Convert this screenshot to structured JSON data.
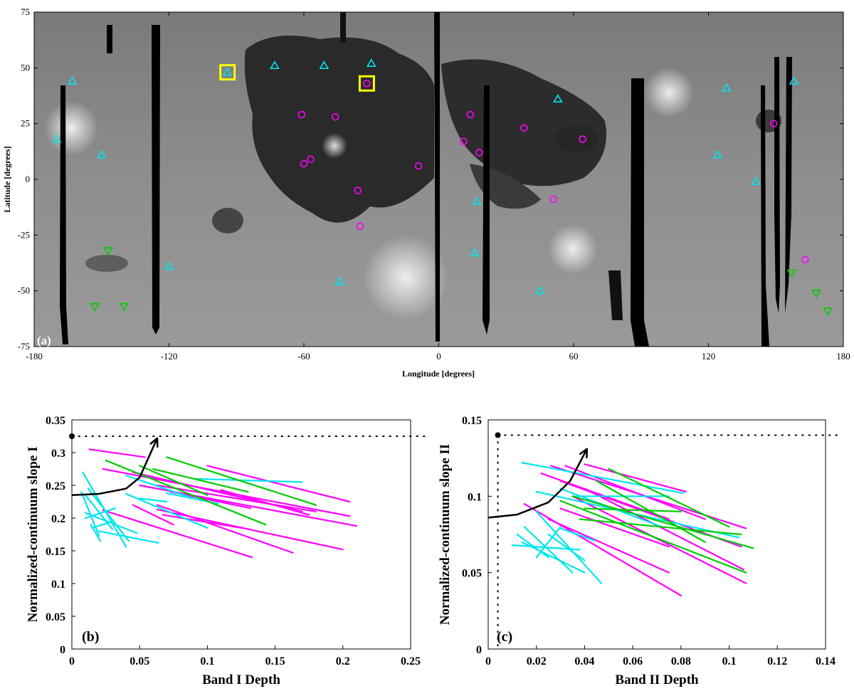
{
  "colors": {
    "mare": "#ff00ff",
    "highland_up": "#00e5ee",
    "highland_down": "#00cc00",
    "highlight": "#ffff00"
  },
  "chart_data": [
    {
      "type": "scatter",
      "panel_label": "(a)",
      "xlabel": "Longitude [degrees]",
      "ylabel": "Latitude [degrees]",
      "xlim": [
        -180,
        180
      ],
      "ylim": [
        -75,
        75
      ],
      "xticks": [
        -180,
        -120,
        -60,
        0,
        60,
        120,
        180
      ],
      "yticks": [
        -75,
        -50,
        -25,
        0,
        25,
        50,
        75
      ],
      "series": [
        {
          "name": "circle",
          "color": "#ff00ff",
          "points": [
            [
              -61,
              29
            ],
            [
              -46,
              28
            ],
            [
              -32,
              43
            ],
            [
              -60,
              7
            ],
            [
              -57,
              9
            ],
            [
              -36,
              -5
            ],
            [
              -35,
              -21
            ],
            [
              -9,
              6
            ],
            [
              14,
              29
            ],
            [
              11,
              17
            ],
            [
              18,
              12
            ],
            [
              38,
              23
            ],
            [
              64,
              18
            ],
            [
              51,
              -9
            ],
            [
              149,
              25
            ],
            [
              163,
              -36
            ]
          ]
        },
        {
          "name": "triangle-up",
          "color": "#00e5ee",
          "points": [
            [
              -163,
              44
            ],
            [
              -170,
              18
            ],
            [
              -150,
              11
            ],
            [
              -94,
              48
            ],
            [
              -73,
              51
            ],
            [
              -51,
              51
            ],
            [
              -30,
              52
            ],
            [
              -44,
              -46
            ],
            [
              53,
              36
            ],
            [
              128,
              41
            ],
            [
              124,
              11
            ],
            [
              141,
              -1
            ],
            [
              158,
              44
            ],
            [
              17,
              -10
            ],
            [
              16,
              -33
            ],
            [
              45,
              -50
            ],
            [
              -120,
              -39
            ]
          ]
        },
        {
          "name": "triangle-down",
          "color": "#00cc00",
          "points": [
            [
              -147,
              -32
            ],
            [
              -153,
              -57
            ],
            [
              -140,
              -57
            ],
            [
              157,
              -42
            ],
            [
              168,
              -51
            ],
            [
              173,
              -59
            ]
          ]
        }
      ],
      "highlight_boxes": [
        [
          -94,
          48
        ],
        [
          -32,
          43
        ]
      ]
    },
    {
      "type": "line",
      "panel_label": "(b)",
      "xlabel": "Band I Depth",
      "ylabel": "Normalized-continuum slope I",
      "xlim": [
        0,
        0.25
      ],
      "ylim": [
        0,
        0.35
      ],
      "xticks": [
        "0",
        "0.05",
        "0.1",
        "0.15",
        "0.2",
        "0.25"
      ],
      "yticks": [
        "0",
        "0.05",
        "0.1",
        "0.15",
        "0.2",
        "0.25",
        "0.3",
        "0.35"
      ],
      "reference_point": [
        0,
        0.325
      ],
      "arrow_path": [
        [
          0,
          0.235
        ],
        [
          0.02,
          0.237
        ],
        [
          0.04,
          0.245
        ],
        [
          0.05,
          0.262
        ],
        [
          0.063,
          0.322
        ]
      ],
      "series": [
        {
          "name": "magenta",
          "color": "#ff00ff",
          "segments": [
            [
              0.013,
              0.305,
              0.054,
              0.293
            ],
            [
              0.023,
              0.275,
              0.205,
              0.203
            ],
            [
              0.045,
              0.27,
              0.17,
              0.21
            ],
            [
              0.05,
              0.25,
              0.21,
              0.188
            ],
            [
              0.063,
              0.25,
              0.18,
              0.21
            ],
            [
              0.1,
              0.28,
              0.205,
              0.225
            ],
            [
              0.11,
              0.243,
              0.175,
              0.205
            ],
            [
              0.073,
              0.24,
              0.132,
              0.215
            ],
            [
              0.063,
              0.213,
              0.2,
              0.152
            ],
            [
              0.063,
              0.22,
              0.163,
              0.147
            ],
            [
              0.023,
              0.212,
              0.133,
              0.14
            ],
            [
              0.045,
              0.22,
              0.075,
              0.19
            ],
            [
              0.067,
              0.205,
              0.125,
              0.185
            ]
          ]
        },
        {
          "name": "cyan",
          "color": "#00e5ee",
          "segments": [
            [
              0.008,
              0.27,
              0.04,
              0.156
            ],
            [
              0.01,
              0.235,
              0.03,
              0.183
            ],
            [
              0.012,
              0.245,
              0.042,
              0.165
            ],
            [
              0.007,
              0.24,
              0.02,
              0.173
            ],
            [
              0.01,
              0.208,
              0.048,
              0.177
            ],
            [
              0.015,
              0.185,
              0.03,
              0.195
            ],
            [
              0.01,
              0.2,
              0.032,
              0.215
            ],
            [
              0.02,
              0.18,
              0.064,
              0.162
            ],
            [
              0.014,
              0.19,
              0.021,
              0.165
            ],
            [
              0.04,
              0.265,
              0.09,
              0.23
            ],
            [
              0.07,
              0.238,
              0.108,
              0.222
            ],
            [
              0.09,
              0.26,
              0.17,
              0.255
            ],
            [
              0.04,
              0.237,
              0.1,
              0.185
            ],
            [
              0.05,
              0.23,
              0.07,
              0.225
            ]
          ]
        },
        {
          "name": "green",
          "color": "#00cc00",
          "segments": [
            [
              0.025,
              0.288,
              0.143,
              0.19
            ],
            [
              0.07,
              0.293,
              0.18,
              0.22
            ],
            [
              0.06,
              0.275,
              0.13,
              0.24
            ],
            [
              0.05,
              0.28,
              0.1,
              0.235
            ]
          ]
        }
      ]
    },
    {
      "type": "line",
      "panel_label": "(c)",
      "xlabel": "Band II Depth",
      "ylabel": "Normalized-continuum slope II",
      "xlim": [
        0,
        0.14
      ],
      "ylim": [
        0,
        0.15
      ],
      "xticks": [
        "0",
        "0.02",
        "0.04",
        "0.06",
        "0.08",
        "0.1",
        "0.12",
        "0.14"
      ],
      "yticks": [
        "0",
        "0.05",
        "0.1",
        "0.15"
      ],
      "reference_point": [
        0.004,
        0.14
      ],
      "arrow_path": [
        [
          0,
          0.086
        ],
        [
          0.012,
          0.088
        ],
        [
          0.025,
          0.096
        ],
        [
          0.034,
          0.11
        ],
        [
          0.041,
          0.131
        ]
      ],
      "series": [
        {
          "name": "magenta",
          "color": "#ff00ff",
          "segments": [
            [
              0.026,
              0.12,
              0.107,
              0.079
            ],
            [
              0.032,
              0.12,
              0.09,
              0.085
            ],
            [
              0.04,
              0.121,
              0.082,
              0.103
            ],
            [
              0.022,
              0.115,
              0.075,
              0.085
            ],
            [
              0.03,
              0.11,
              0.105,
              0.067
            ],
            [
              0.04,
              0.105,
              0.106,
              0.052
            ],
            [
              0.035,
              0.1,
              0.107,
              0.043
            ],
            [
              0.03,
              0.092,
              0.075,
              0.067
            ],
            [
              0.015,
              0.095,
              0.08,
              0.035
            ],
            [
              0.025,
              0.085,
              0.075,
              0.05
            ]
          ]
        },
        {
          "name": "cyan",
          "color": "#00e5ee",
          "segments": [
            [
              0.014,
              0.122,
              0.081,
              0.102
            ],
            [
              0.02,
              0.103,
              0.104,
              0.073
            ],
            [
              0.02,
              0.09,
              0.047,
              0.043
            ],
            [
              0.014,
              0.07,
              0.04,
              0.05
            ],
            [
              0.01,
              0.068,
              0.038,
              0.065
            ],
            [
              0.015,
              0.08,
              0.035,
              0.05
            ],
            [
              0.025,
              0.075,
              0.04,
              0.058
            ],
            [
              0.02,
              0.06,
              0.03,
              0.08
            ],
            [
              0.03,
              0.079,
              0.044,
              0.071
            ],
            [
              0.03,
              0.105,
              0.072,
              0.08
            ],
            [
              0.035,
              0.1,
              0.075,
              0.1
            ],
            [
              0.012,
              0.075,
              0.025,
              0.06
            ]
          ]
        },
        {
          "name": "green",
          "color": "#00cc00",
          "segments": [
            [
              0.035,
              0.1,
              0.11,
              0.066
            ],
            [
              0.03,
              0.097,
              0.107,
              0.05
            ],
            [
              0.04,
              0.092,
              0.08,
              0.09
            ],
            [
              0.045,
              0.11,
              0.09,
              0.07
            ],
            [
              0.038,
              0.085,
              0.105,
              0.075
            ],
            [
              0.05,
              0.118,
              0.1,
              0.08
            ]
          ]
        }
      ]
    }
  ]
}
